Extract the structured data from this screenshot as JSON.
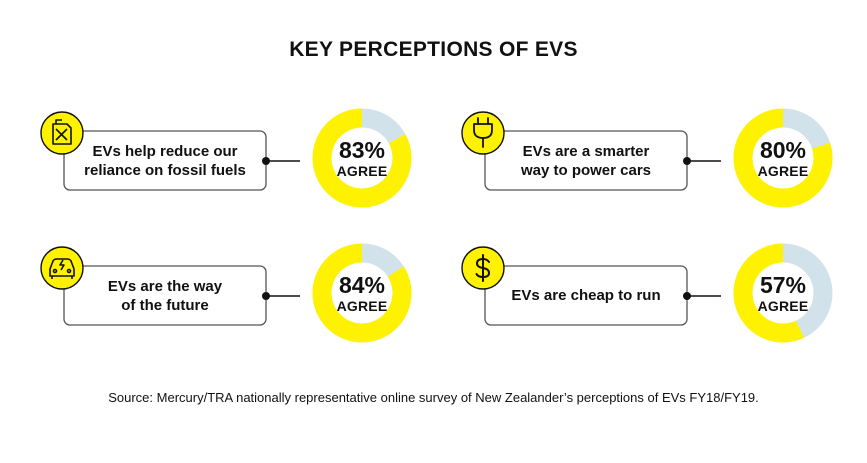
{
  "title": "KEY PERCEPTIONS OF EVS",
  "colors": {
    "fill": "#fff200",
    "track": "#d2e2ea",
    "ink": "#111111"
  },
  "chart_data": {
    "type": "pie",
    "title": "KEY PERCEPTIONS OF EVS",
    "items": [
      {
        "statement_lines": [
          "EVs help reduce our",
          "reliance on fossil fuels"
        ],
        "value": 83,
        "value_text": "83%",
        "label": "AGREE",
        "icon": "fuel-can-icon"
      },
      {
        "statement_lines": [
          "EVs are a smarter",
          "way to power cars"
        ],
        "value": 80,
        "value_text": "80%",
        "label": "AGREE",
        "icon": "plug-icon"
      },
      {
        "statement_lines": [
          "EVs are the way",
          "of the future"
        ],
        "value": 84,
        "value_text": "84%",
        "label": "AGREE",
        "icon": "electric-car-icon"
      },
      {
        "statement_lines": [
          "EVs are cheap to run"
        ],
        "value": 57,
        "value_text": "57%",
        "label": "AGREE",
        "icon": "dollar-icon"
      }
    ]
  },
  "source": "Source: Mercury/TRA nationally representative online survey of New Zealander’s perceptions of EVs FY18/FY19."
}
